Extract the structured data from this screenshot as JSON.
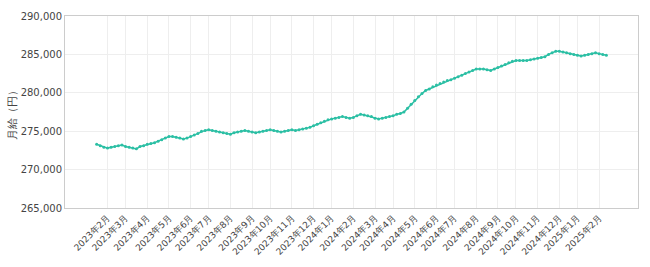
{
  "chart_data": {
    "type": "line",
    "ylabel": "月給（円）",
    "categories": [
      null,
      null,
      null,
      "2023年2月",
      null,
      null,
      null,
      null,
      "2023年3月",
      null,
      null,
      null,
      null,
      null,
      "2023年4月",
      null,
      null,
      null,
      null,
      null,
      "2023年5月",
      null,
      null,
      null,
      null,
      null,
      "2023年6月",
      null,
      null,
      null,
      null,
      "2023年7月",
      null,
      null,
      null,
      null,
      null,
      "2023年8月",
      null,
      null,
      null,
      null,
      null,
      "2023年9月",
      null,
      null,
      null,
      null,
      "2023年10月",
      null,
      null,
      null,
      null,
      null,
      "2023年11月",
      null,
      null,
      null,
      null,
      null,
      "2023年12月",
      null,
      null,
      null,
      null,
      "2024年1月",
      null,
      null,
      null,
      null,
      null,
      "2024年2月",
      null,
      null,
      null,
      null,
      null,
      "2024年3月",
      null,
      null,
      null,
      null,
      "2024年4月",
      null,
      null,
      null,
      null,
      null,
      "2024年5月",
      null,
      null,
      null,
      null,
      null,
      "2024年6月",
      null,
      null,
      null,
      null,
      "2024年7月",
      null,
      null,
      null,
      null,
      null,
      "2024年8月",
      null,
      null,
      null,
      null,
      null,
      "2024年9月",
      null,
      null,
      null,
      null,
      "2024年10月",
      null,
      null,
      null,
      null,
      null,
      "2024年11月",
      null,
      null,
      null,
      null,
      null,
      "2024年12月",
      null,
      null,
      null,
      null,
      "2025年1月",
      null,
      null,
      null,
      null,
      null,
      "2025年2月",
      null,
      null
    ],
    "values": [
      273300,
      273100,
      272900,
      272800,
      272900,
      273000,
      273100,
      273200,
      273000,
      272900,
      272800,
      272700,
      273000,
      273100,
      273300,
      273400,
      273500,
      273700,
      273900,
      274100,
      274300,
      274300,
      274200,
      274100,
      274000,
      274100,
      274300,
      274500,
      274700,
      275000,
      275100,
      275200,
      275100,
      275000,
      274900,
      274800,
      274700,
      274600,
      274800,
      274900,
      275000,
      275100,
      275000,
      274900,
      274800,
      274900,
      275000,
      275100,
      275200,
      275100,
      275000,
      274900,
      275000,
      275100,
      275200,
      275100,
      275200,
      275300,
      275400,
      275500,
      275700,
      275900,
      276100,
      276300,
      276500,
      276600,
      276700,
      276800,
      276900,
      276800,
      276700,
      276800,
      277000,
      277200,
      277100,
      277000,
      276900,
      276700,
      276600,
      276700,
      276800,
      276900,
      277000,
      277200,
      277300,
      277500,
      278000,
      278500,
      279000,
      279500,
      279900,
      280300,
      280500,
      280800,
      281000,
      281200,
      281400,
      281600,
      281700,
      281900,
      282100,
      282300,
      282500,
      282700,
      282900,
      283100,
      283100,
      283100,
      283000,
      282900,
      283100,
      283300,
      283500,
      283700,
      283900,
      284100,
      284200,
      284200,
      284200,
      284200,
      284300,
      284400,
      284500,
      284600,
      284700,
      285000,
      285200,
      285400,
      285400,
      285300,
      285200,
      285100,
      285000,
      284900,
      284800,
      284900,
      285000,
      285100,
      285200,
      285100,
      285000,
      284900
    ],
    "color": "#2bbfa4",
    "marker": "circle",
    "ylim": [
      265000,
      290000
    ],
    "yticks": [
      {
        "value": 265000,
        "label": "265,000"
      },
      {
        "value": 270000,
        "label": "270,000"
      },
      {
        "value": 275000,
        "label": "275,000"
      },
      {
        "value": 280000,
        "label": "280,000"
      },
      {
        "value": 285000,
        "label": "285,000"
      },
      {
        "value": 290000,
        "label": "290,000"
      }
    ],
    "grid": true
  }
}
